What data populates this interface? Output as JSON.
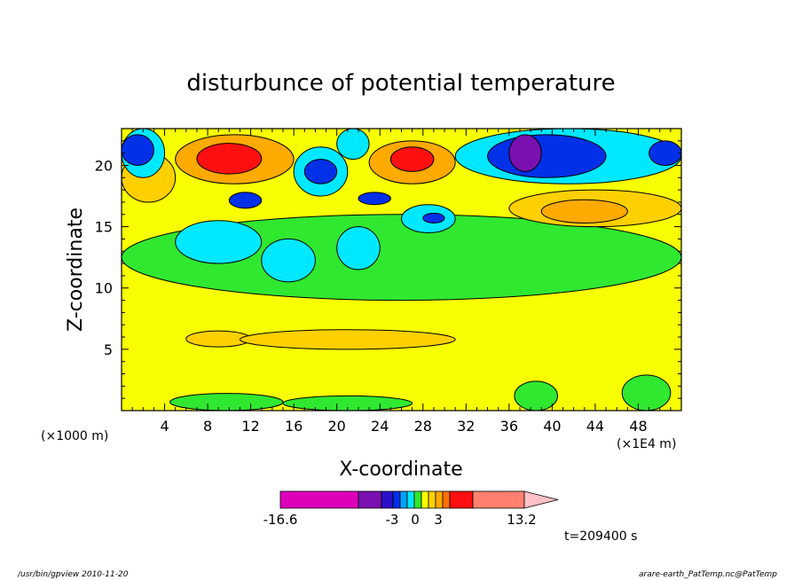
{
  "chart_data": {
    "type": "heatmap",
    "title": "disturbunce of potential temperature",
    "xlabel": "X-coordinate",
    "ylabel": "Z-coordinate",
    "x_unit": "(×1E4 m)",
    "y_unit": "(×1000 m)",
    "xlim": [
      0,
      52
    ],
    "ylim": [
      0,
      23
    ],
    "x_ticks": [
      4,
      8,
      12,
      16,
      20,
      24,
      28,
      32,
      36,
      40,
      44,
      48
    ],
    "y_ticks": [
      5,
      10,
      15,
      20
    ],
    "colorbar": {
      "labels": [
        "-16.6",
        "-3",
        "0",
        "3",
        "13.2"
      ],
      "min": -16.6,
      "max": 13.2,
      "colors": [
        "#dd00bb",
        "#7a10b0",
        "#2a10c8",
        "#0030e8",
        "#00a0ff",
        "#00e8ff",
        "#30e830",
        "#f8ff00",
        "#ffd000",
        "#ffaa00",
        "#ff7000",
        "#ff1010",
        "#ff8070",
        "#ffc0c8"
      ]
    },
    "time_label": "t=209400 s",
    "regions": [
      {
        "level": 1,
        "x": [
          0,
          52
        ],
        "z": [
          0,
          23
        ]
      },
      {
        "level": 2,
        "x": [
          0,
          52
        ],
        "z": [
          9,
          16
        ]
      },
      {
        "level": 3,
        "x": [
          6,
          12
        ],
        "z": [
          5.2,
          6.5
        ]
      },
      {
        "level": 3,
        "x": [
          11,
          31
        ],
        "z": [
          5,
          6.6
        ]
      },
      {
        "level": 2,
        "x": [
          4.5,
          15
        ],
        "z": [
          0,
          1.4
        ]
      },
      {
        "level": 2,
        "x": [
          15,
          27
        ],
        "z": [
          0,
          1.2
        ]
      },
      {
        "level": 2,
        "x": [
          36.5,
          40.5
        ],
        "z": [
          0,
          2.4
        ]
      },
      {
        "level": 2,
        "x": [
          46.5,
          51
        ],
        "z": [
          0,
          2.9
        ]
      },
      {
        "level": 0,
        "x": [
          5,
          13
        ],
        "z": [
          12,
          15.5
        ]
      },
      {
        "level": 0,
        "x": [
          13,
          18
        ],
        "z": [
          10.5,
          14
        ]
      },
      {
        "level": 0,
        "x": [
          20,
          24
        ],
        "z": [
          11.5,
          15
        ]
      },
      {
        "level": 0,
        "x": [
          26,
          31
        ],
        "z": [
          14.5,
          16.8
        ]
      },
      {
        "level": 3,
        "x": [
          0,
          5
        ],
        "z": [
          17,
          21
        ]
      },
      {
        "level": 4,
        "x": [
          5,
          16
        ],
        "z": [
          18.5,
          22.5
        ]
      },
      {
        "level": 5,
        "x": [
          7,
          13
        ],
        "z": [
          19.3,
          21.8
        ]
      },
      {
        "level": 4,
        "x": [
          23,
          31
        ],
        "z": [
          18.5,
          22
        ]
      },
      {
        "level": 5,
        "x": [
          25,
          29
        ],
        "z": [
          19.5,
          21.5
        ]
      },
      {
        "level": 3,
        "x": [
          36,
          52
        ],
        "z": [
          15,
          18
        ]
      },
      {
        "level": 4,
        "x": [
          39,
          47
        ],
        "z": [
          15.3,
          17.2
        ]
      },
      {
        "level": 0,
        "x": [
          0,
          4
        ],
        "z": [
          19,
          23
        ]
      },
      {
        "level": -1,
        "x": [
          0,
          3
        ],
        "z": [
          20,
          22.5
        ]
      },
      {
        "level": 0,
        "x": [
          16,
          21
        ],
        "z": [
          17.5,
          21.5
        ]
      },
      {
        "level": -1,
        "x": [
          17,
          20
        ],
        "z": [
          18.5,
          20.5
        ]
      },
      {
        "level": 0,
        "x": [
          20,
          23
        ],
        "z": [
          20.5,
          23
        ]
      },
      {
        "level": 0,
        "x": [
          31,
          52
        ],
        "z": [
          18.5,
          23
        ]
      },
      {
        "level": -1,
        "x": [
          34,
          45
        ],
        "z": [
          19,
          22.5
        ]
      },
      {
        "level": -2,
        "x": [
          36,
          39
        ],
        "z": [
          19.5,
          22.5
        ]
      },
      {
        "level": -1,
        "x": [
          49,
          52
        ],
        "z": [
          20,
          22
        ]
      },
      {
        "level": -1,
        "x": [
          10,
          13
        ],
        "z": [
          16.5,
          17.8
        ]
      },
      {
        "level": -1,
        "x": [
          22,
          25
        ],
        "z": [
          16.8,
          17.8
        ]
      },
      {
        "level": -1,
        "x": [
          28,
          30
        ],
        "z": [
          15.3,
          16.1
        ]
      }
    ]
  },
  "footer": {
    "left": "/usr/bin/gpview   2010-11-20",
    "right": "arare-earth_PatTemp.nc@PatTemp"
  }
}
